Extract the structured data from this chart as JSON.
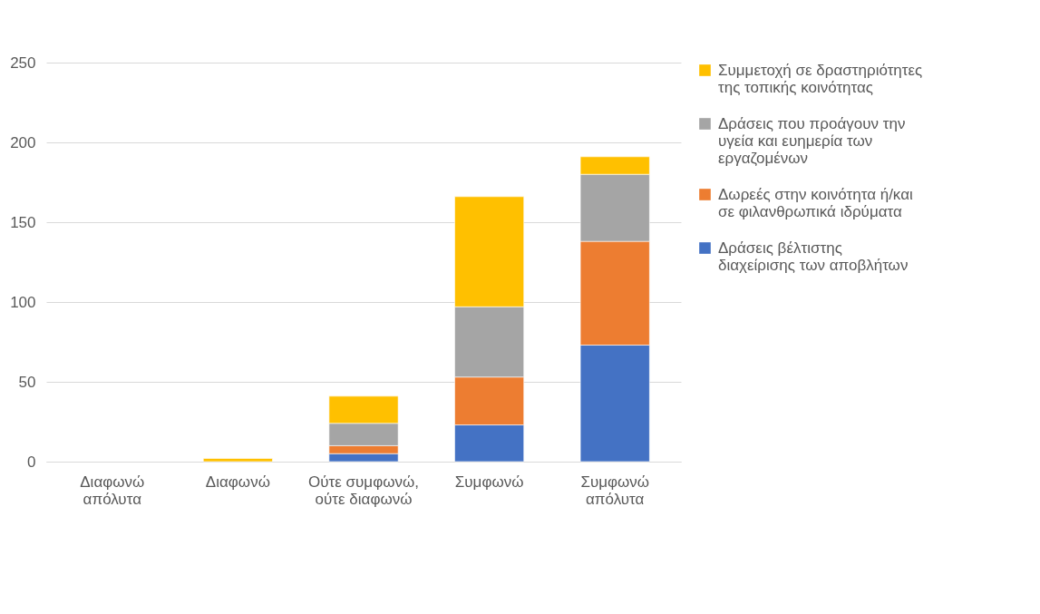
{
  "chart_data": {
    "type": "bar",
    "stacked": true,
    "categories": [
      "Διαφωνώ απόλυτα",
      "Διαφωνώ",
      "Ούτε συμφωνώ, ούτε διαφωνώ",
      "Συμφωνώ",
      "Συμφωνώ απόλυτα"
    ],
    "series": [
      {
        "name": "Δράσεις βέλτιστης διαχείρισης των αποβλήτων",
        "color": "#4472c4",
        "values": [
          0,
          0,
          5,
          23,
          73
        ]
      },
      {
        "name": "Δωρεές στην κοινότητα ή/και σε φιλανθρωπικά ιδρύματα",
        "color": "#ed7d31",
        "values": [
          0,
          0,
          5,
          30,
          65
        ]
      },
      {
        "name": "Δράσεις που προάγουν την υγεία και ευημερία των εργαζομένων",
        "color": "#a5a5a5",
        "values": [
          0,
          0,
          14,
          44,
          42
        ]
      },
      {
        "name": "Συμμετοχή σε δραστηριότητες της τοπικής κοινότητας",
        "color": "#ffc000",
        "values": [
          0,
          2,
          17,
          69,
          11
        ]
      }
    ],
    "ylim": [
      0,
      250
    ],
    "yticks": [
      0,
      50,
      100,
      150,
      200,
      250
    ],
    "grid": "y",
    "legend": "right"
  }
}
